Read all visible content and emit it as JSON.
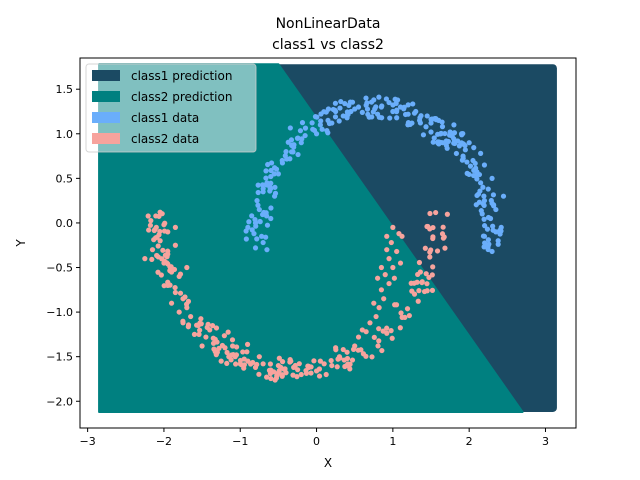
{
  "chart_data": {
    "type": "scatter",
    "title": "NonLinearData",
    "subtitle": "class1 vs  class2",
    "xlabel": "X",
    "ylabel": "Y",
    "xlim": [
      -3.1,
      3.4
    ],
    "ylim": [
      -2.3,
      1.85
    ],
    "xticks": [
      -3,
      -2,
      -1,
      0,
      1,
      2,
      3
    ],
    "yticks": [
      -2.0,
      -1.5,
      -1.0,
      -0.5,
      0.0,
      0.5,
      1.0,
      1.5
    ],
    "grid": false,
    "legend_position": "top-left",
    "prediction_regions": {
      "bounds": {
        "xmin": -2.85,
        "xmax": 3.15,
        "ymin": -2.12,
        "ymax": 1.78
      },
      "decision_boundary": [
        [
          -0.5,
          1.78
        ],
        [
          2.7,
          -2.12
        ]
      ],
      "class1_color": "#1b4a63",
      "class2_color": "#008080"
    },
    "series": [
      {
        "name": "class1 data",
        "color": "#6aaefb",
        "shape": "upper moon",
        "center": [
          0.75,
          -0.25
        ],
        "radius": 1.55,
        "angle_range_deg": [
          0,
          180
        ],
        "points": [
          [
            2.3,
            -0.32
          ],
          [
            2.38,
            -0.2
          ],
          [
            2.2,
            -0.15
          ],
          [
            2.42,
            -0.05
          ],
          [
            2.28,
            0.05
          ],
          [
            2.35,
            0.15
          ],
          [
            2.2,
            0.25
          ],
          [
            2.45,
            0.3
          ],
          [
            2.25,
            0.38
          ],
          [
            2.15,
            0.45
          ],
          [
            2.3,
            0.5
          ],
          [
            2.1,
            0.55
          ],
          [
            2.2,
            0.65
          ],
          [
            2.05,
            0.7
          ],
          [
            2.15,
            0.78
          ],
          [
            1.95,
            0.82
          ],
          [
            2.0,
            0.9
          ],
          [
            1.85,
            0.92
          ],
          [
            1.9,
            1.0
          ],
          [
            1.75,
            1.02
          ],
          [
            1.8,
            1.1
          ],
          [
            1.65,
            1.08
          ],
          [
            1.6,
            1.15
          ],
          [
            1.5,
            1.12
          ],
          [
            1.45,
            1.2
          ],
          [
            1.35,
            1.15
          ],
          [
            1.3,
            1.25
          ],
          [
            1.2,
            1.22
          ],
          [
            1.1,
            1.3
          ],
          [
            1.0,
            1.25
          ],
          [
            0.95,
            1.35
          ],
          [
            0.85,
            1.3
          ],
          [
            0.75,
            1.38
          ],
          [
            0.65,
            1.32
          ],
          [
            0.55,
            1.3
          ],
          [
            0.45,
            1.25
          ],
          [
            0.35,
            1.2
          ],
          [
            0.25,
            1.25
          ],
          [
            0.15,
            1.15
          ],
          [
            0.05,
            1.1
          ],
          [
            -0.05,
            1.05
          ],
          [
            -0.15,
            0.98
          ],
          [
            -0.25,
            0.95
          ],
          [
            -0.3,
            0.85
          ],
          [
            -0.4,
            0.8
          ],
          [
            -0.45,
            0.7
          ],
          [
            -0.55,
            0.62
          ],
          [
            -0.6,
            0.52
          ],
          [
            -0.65,
            0.45
          ],
          [
            -0.7,
            0.35
          ],
          [
            -0.78,
            0.25
          ],
          [
            -0.75,
            0.15
          ],
          [
            -0.85,
            0.08
          ],
          [
            -0.8,
            0.0
          ],
          [
            -0.9,
            -0.05
          ],
          [
            -0.82,
            -0.12
          ],
          [
            -0.92,
            -0.18
          ],
          [
            -0.7,
            -0.22
          ],
          [
            -0.8,
            -0.28
          ],
          [
            -0.65,
            -0.3
          ],
          [
            -0.72,
            -0.15
          ],
          [
            -0.6,
            0.05
          ],
          [
            -0.55,
            0.3
          ],
          [
            -0.5,
            0.55
          ],
          [
            -0.35,
            0.72
          ],
          [
            -0.2,
            0.9
          ],
          [
            0.0,
            1.0
          ],
          [
            0.2,
            1.12
          ],
          [
            0.4,
            1.18
          ],
          [
            0.6,
            1.24
          ],
          [
            0.8,
            1.22
          ],
          [
            1.05,
            1.18
          ],
          [
            1.25,
            1.12
          ],
          [
            1.5,
            1.02
          ],
          [
            1.7,
            0.92
          ],
          [
            1.92,
            0.75
          ],
          [
            2.08,
            0.6
          ],
          [
            2.18,
            0.4
          ],
          [
            2.3,
            0.22
          ],
          [
            2.35,
            -0.1
          ]
        ]
      },
      {
        "name": "class2 data",
        "color": "#f7a39d",
        "shape": "lower moon",
        "center": [
          -0.25,
          0.2
        ],
        "radius": 1.85,
        "angle_range_deg": [
          180,
          360
        ],
        "points": [
          [
            -2.2,
            -0.08
          ],
          [
            -2.1,
            -0.05
          ],
          [
            -2.0,
            -0.02
          ],
          [
            -1.95,
            -0.1
          ],
          [
            -1.85,
            -0.05
          ],
          [
            -2.05,
            -0.2
          ],
          [
            -2.15,
            -0.3
          ],
          [
            -1.95,
            -0.35
          ],
          [
            -1.85,
            -0.25
          ],
          [
            -2.0,
            -0.45
          ],
          [
            -1.9,
            -0.55
          ],
          [
            -1.8,
            -0.6
          ],
          [
            -1.95,
            -0.7
          ],
          [
            -1.85,
            -0.78
          ],
          [
            -1.75,
            -0.85
          ],
          [
            -1.9,
            -0.9
          ],
          [
            -1.8,
            -1.0
          ],
          [
            -1.65,
            -1.05
          ],
          [
            -1.75,
            -1.12
          ],
          [
            -1.55,
            -1.15
          ],
          [
            -1.6,
            -1.25
          ],
          [
            -1.45,
            -1.28
          ],
          [
            -1.5,
            -1.38
          ],
          [
            -1.35,
            -1.35
          ],
          [
            -1.3,
            -1.45
          ],
          [
            -1.2,
            -1.4
          ],
          [
            -1.15,
            -1.5
          ],
          [
            -1.05,
            -1.48
          ],
          [
            -1.0,
            -1.58
          ],
          [
            -0.9,
            -1.55
          ],
          [
            -0.8,
            -1.62
          ],
          [
            -0.7,
            -1.58
          ],
          [
            -0.6,
            -1.65
          ],
          [
            -0.5,
            -1.6
          ],
          [
            -0.4,
            -1.68
          ],
          [
            -0.3,
            -1.62
          ],
          [
            -0.2,
            -1.7
          ],
          [
            -0.1,
            -1.62
          ],
          [
            0.0,
            -1.66
          ],
          [
            0.1,
            -1.58
          ],
          [
            0.2,
            -1.6
          ],
          [
            0.3,
            -1.5
          ],
          [
            0.4,
            -1.45
          ],
          [
            0.5,
            -1.38
          ],
          [
            0.55,
            -1.28
          ],
          [
            0.65,
            -1.22
          ],
          [
            0.7,
            -1.12
          ],
          [
            0.78,
            -1.05
          ],
          [
            0.82,
            -0.95
          ],
          [
            0.88,
            -0.85
          ],
          [
            0.85,
            -0.75
          ],
          [
            0.95,
            -0.68
          ],
          [
            0.9,
            -0.58
          ],
          [
            1.0,
            -0.5
          ],
          [
            0.95,
            -0.4
          ],
          [
            1.05,
            -0.32
          ],
          [
            0.98,
            -0.22
          ],
          [
            1.08,
            -0.12
          ],
          [
            1.0,
            -0.05
          ],
          [
            1.12,
            -0.15
          ],
          [
            0.92,
            -0.3
          ],
          [
            1.1,
            -0.45
          ],
          [
            0.85,
            -0.5
          ],
          [
            0.8,
            -0.62
          ],
          [
            -1.7,
            -0.95
          ],
          [
            -1.4,
            -1.2
          ],
          [
            -1.1,
            -1.38
          ],
          [
            -0.75,
            -1.5
          ],
          [
            -0.35,
            -1.56
          ],
          [
            0.05,
            -1.55
          ],
          [
            0.35,
            -1.42
          ],
          [
            0.6,
            -1.2
          ],
          [
            0.75,
            -0.9
          ],
          [
            1.02,
            -0.62
          ],
          [
            -2.25,
            -0.4
          ],
          [
            -1.7,
            -0.5
          ],
          [
            -1.25,
            -1.55
          ],
          [
            -0.45,
            -1.72
          ],
          [
            0.25,
            -1.4
          ],
          [
            0.92,
            -0.15
          ]
        ]
      }
    ],
    "legend": [
      {
        "label": "class1 prediction",
        "color": "#1b4a63"
      },
      {
        "label": "class2 prediction",
        "color": "#008080"
      },
      {
        "label": "class1 data",
        "color": "#6aaefb"
      },
      {
        "label": "class2 data",
        "color": "#f7a39d"
      }
    ]
  }
}
